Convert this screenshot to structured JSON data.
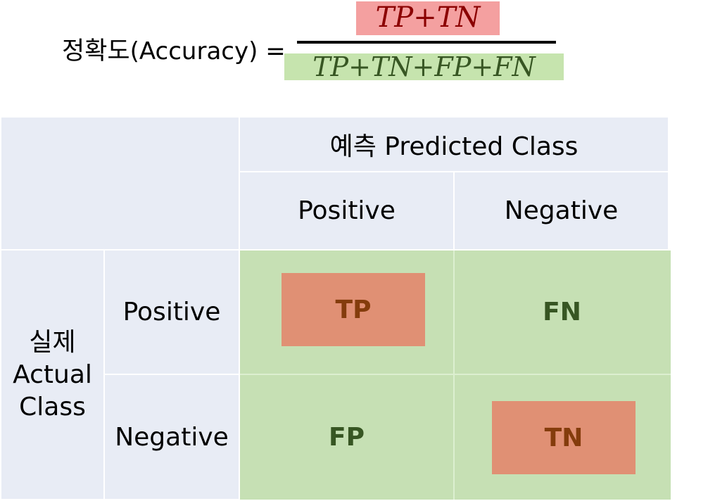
{
  "formula": {
    "label_ko": "정확도",
    "label_en": "(Accuracy)",
    "equals": "=",
    "numerator": "TP+TN",
    "denominator": "TP+TN+FP+FN"
  },
  "matrix": {
    "predicted_header": "예측 Predicted Class",
    "col_positive": "Positive",
    "col_negative": "Negative",
    "actual_line1": "실제",
    "actual_line2": "Actual",
    "actual_line3": "Class",
    "row_positive": "Positive",
    "row_negative": "Negative",
    "tp": "TP",
    "fn": "FN",
    "fp": "FP",
    "tn": "TN"
  },
  "colors": {
    "header_bg": "#e8ecf5",
    "green_bg": "#c6e0b4",
    "highlight_bg": "#e09074",
    "highlight_text": "#843c0c",
    "green_text": "#375623",
    "numerator_bg": "#f4a0a0",
    "denominator_bg": "#c6e4ae"
  }
}
